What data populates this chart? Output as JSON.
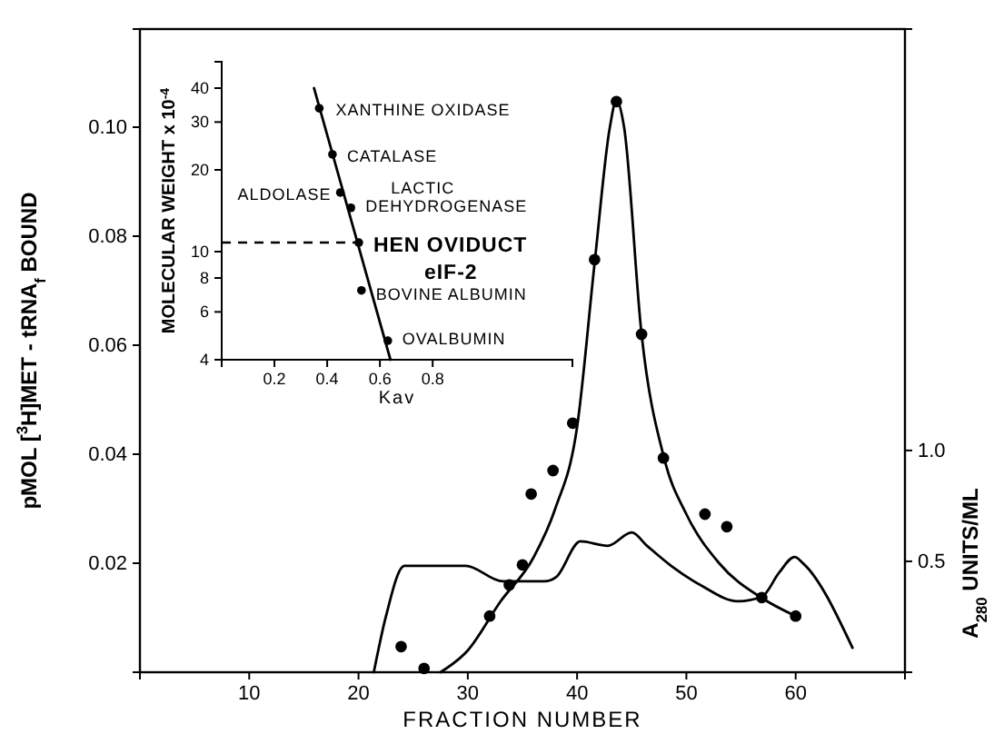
{
  "chart_data": [
    {
      "type": "line",
      "xlabel": "FRACTION NUMBER",
      "ylabel": "pMOL [$^{3}$H]MET - tRNA$_{f}$ BOUND",
      "y2label": "A$_{280}$ UNITS/ML",
      "xlim": [
        0,
        70
      ],
      "xticks": [
        10,
        20,
        30,
        40,
        50,
        60
      ],
      "ylim": [
        0,
        0.118
      ],
      "yticks": [
        0.02,
        0.04,
        0.06,
        0.08,
        {
          "value": 0.1,
          "label": "0.10"
        }
      ],
      "y2lim": [
        0,
        2.9
      ],
      "y2ticks": [
        0.5,
        {
          "value": 1,
          "label": "1.0"
        }
      ],
      "grid": false,
      "line_style": "solid",
      "series": [
        {
          "type": "scatter",
          "marker": "circle",
          "color": "#000000",
          "x": [
            23.9,
            26,
            32,
            33.8,
            35,
            35.8,
            37.8,
            39.6,
            41.6,
            43.6,
            45.9,
            47.9,
            51.7,
            53.7,
            56.9,
            60
          ],
          "values": [
            0.0047,
            0.0007,
            0.0103,
            0.016,
            0.0197,
            0.0327,
            0.037,
            0.0457,
            0.0757,
            0.1047,
            0.062,
            0.0393,
            0.029,
            0.0267,
            0.0137,
            0.0103
          ]
        },
        {
          "color": "#000000",
          "x": [
            27.5,
            30,
            33,
            36,
            38,
            40,
            41.6,
            43,
            43.6,
            44.3,
            45.9,
            48,
            50,
            53,
            57,
            60
          ],
          "values": [
            0,
            0.004,
            0.013,
            0.021,
            0.03,
            0.045,
            0.075,
            0.1,
            0.105,
            0.1,
            0.062,
            0.039,
            0.029,
            0.02,
            0.0135,
            0.0103
          ]
        },
        {
          "axis": "y2",
          "color": "#000000",
          "x": [
            21.4,
            22.5,
            24.2,
            25.9,
            29.8,
            33.2,
            37,
            38.1,
            40.3,
            42.8,
            45,
            46.4,
            48.6,
            51.4,
            54.7,
            56.9,
            58.5,
            59.9,
            60.7,
            65.2
          ],
          "values": [
            0,
            0.25,
            0.48,
            0.48,
            0.48,
            0.41,
            0.41,
            0.43,
            0.59,
            0.57,
            0.63,
            0.57,
            0.48,
            0.39,
            0.32,
            0.34,
            0.45,
            0.52,
            0.49,
            0.11
          ]
        }
      ]
    },
    {
      "type": "scatter",
      "xlabel": "Kav",
      "ylabel": "MOLECULAR WEIGHT x 10$^{-4}$",
      "xlim": [
        0,
        1.33
      ],
      "xticks": [
        0.2,
        0.4,
        0.6,
        0.8
      ],
      "ylim": [
        4,
        50
      ],
      "yticks": [
        4,
        6,
        8,
        10,
        20,
        30,
        40
      ],
      "log": "y",
      "grid": false,
      "marker": "circle",
      "line_style": "solid",
      "series": [
        {
          "color": "#000000",
          "x": [
            0.37,
            0.42,
            0.45,
            0.49,
            0.52,
            0.53,
            0.63
          ],
          "values": [
            33.7,
            22.8,
            16.5,
            14.5,
            10.8,
            7.2,
            4.7
          ]
        },
        {
          "type": "line",
          "marker": "none",
          "color": "#000000",
          "x": [
            0.35,
            0.64
          ],
          "values": [
            40,
            4
          ]
        }
      ],
      "ref_lines": [
        {
          "axis": "y",
          "value": 10.8,
          "line_style": "dashed"
        }
      ],
      "annotations": [
        {
          "text": "XANTHINE OXIDASE",
          "x": 0.37,
          "y": 33.7
        },
        {
          "text": "CATALASE",
          "x": 0.42,
          "y": 22.8
        },
        {
          "text": "ALDOLASE",
          "x": 0.45,
          "y": 16.5
        },
        {
          "text": "LACTIC\nDEHYDROGENASE",
          "x": 0.49,
          "y": 14.5
        },
        {
          "text": "HEN OVIDUCT\neIF-2",
          "x": 0.52,
          "y": 10.8
        },
        {
          "text": "BOVINE ALBUMIN",
          "x": 0.53,
          "y": 7.2
        },
        {
          "text": "OVALBUMIN",
          "x": 0.63,
          "y": 4.7
        }
      ]
    }
  ]
}
